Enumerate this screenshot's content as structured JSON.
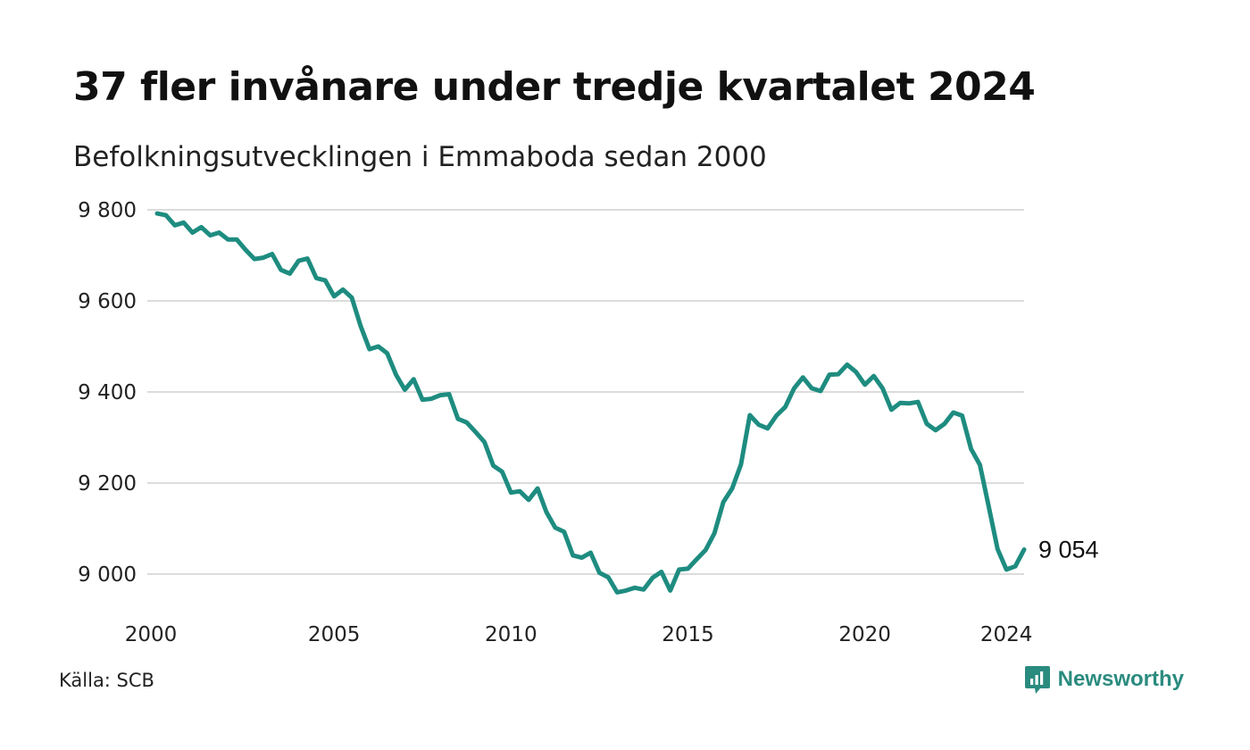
{
  "header": {
    "title": "37 fler invånare under tredje kvartalet 2024",
    "subtitle": "Befolkningsutvecklingen i Emmaboda sedan 2000"
  },
  "footer": {
    "source": "Källa: SCB",
    "brand": "Newsworthy"
  },
  "colors": {
    "line": "#1e8c80",
    "grid": "#dcdcdc",
    "brand": "#2a8b7f"
  },
  "chart_data": {
    "type": "line",
    "title": "37 fler invånare under tredje kvartalet 2024",
    "subtitle": "Befolkningsutvecklingen i Emmaboda sedan 2000",
    "xlabel": "",
    "ylabel": "",
    "xlim": [
      2000,
      2024.75
    ],
    "ylim": [
      8960,
      9800
    ],
    "grid": true,
    "legend": "none",
    "x_ticks": [
      2000,
      2005,
      2010,
      2015,
      2020,
      2024
    ],
    "x_tick_labels": [
      "2000",
      "2005",
      "2010",
      "2015",
      "2020",
      "2024"
    ],
    "y_ticks": [
      9000,
      9200,
      9400,
      9600,
      9800
    ],
    "y_tick_labels": [
      "9 000",
      "9 200",
      "9 400",
      "9 600",
      "9 800"
    ],
    "end_label": "9 054",
    "series": [
      {
        "x": [
          2000,
          2000.25,
          2000.5,
          2000.75,
          2001,
          2001.25,
          2001.5,
          2001.75,
          2002,
          2002.25,
          2002.5,
          2002.75,
          2003,
          2003.25,
          2003.5,
          2003.75,
          2004,
          2004.25,
          2004.5,
          2004.75,
          2005,
          2005.25,
          2005.5,
          2005.75,
          2006,
          2006.25,
          2006.5,
          2006.75,
          2007,
          2007.25,
          2007.5,
          2007.75,
          2008,
          2008.25,
          2008.5,
          2008.75,
          2009,
          2009.25,
          2009.5,
          2009.75,
          2010,
          2010.25,
          2010.5,
          2010.75,
          2011,
          2011.25,
          2011.5,
          2011.75,
          2012,
          2012.25,
          2012.5,
          2012.75,
          2013,
          2013.25,
          2013.5,
          2013.75,
          2014,
          2014.25,
          2014.5,
          2014.75,
          2015,
          2015.25,
          2015.5,
          2015.75,
          2016,
          2016.25,
          2016.5,
          2016.75,
          2017,
          2017.25,
          2017.5,
          2017.75,
          2018,
          2018.25,
          2018.5,
          2018.75,
          2019,
          2019.25,
          2019.5,
          2019.75,
          2020,
          2020.25,
          2020.5,
          2020.75,
          2021,
          2021.25,
          2021.5,
          2021.75,
          2022,
          2022.25,
          2022.5,
          2022.75,
          2023,
          2023.25,
          2023.5,
          2023.75,
          2024,
          2024.25,
          2024.5
        ],
        "values": [
          9792,
          9788,
          9766,
          9772,
          9750,
          9762,
          9744,
          9750,
          9735,
          9735,
          9712,
          9692,
          9695,
          9703,
          9668,
          9660,
          9688,
          9693,
          9650,
          9645,
          9610,
          9625,
          9607,
          9545,
          9494,
          9500,
          9485,
          9438,
          9405,
          9428,
          9383,
          9385,
          9393,
          9395,
          9341,
          9333,
          9312,
          9290,
          9238,
          9225,
          9179,
          9182,
          9163,
          9188,
          9136,
          9102,
          9093,
          9041,
          9036,
          9047,
          9003,
          8993,
          8960,
          8964,
          8970,
          8966,
          8992,
          9005,
          8964,
          9010,
          9012,
          9033,
          9053,
          9090,
          9158,
          9188,
          9241,
          9349,
          9328,
          9320,
          9348,
          9367,
          9408,
          9432,
          9408,
          9402,
          9438,
          9439,
          9460,
          9444,
          9416,
          9435,
          9408,
          9361,
          9376,
          9375,
          9378,
          9330,
          9316,
          9330,
          9355,
          9348,
          9275,
          9240,
          9148,
          9055,
          9010,
          9017,
          9054
        ]
      }
    ]
  }
}
